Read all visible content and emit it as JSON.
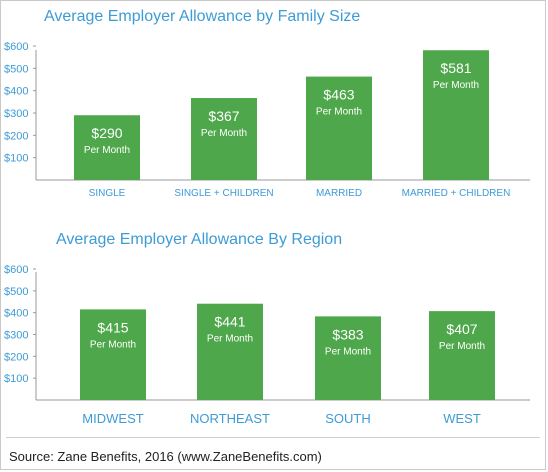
{
  "chart_data": [
    {
      "type": "bar",
      "title": "Average Employer Allowance by Family Size",
      "categories": [
        "SINGLE",
        "SINGLE + CHILDREN",
        "MARRIED",
        "MARRIED + CHILDREN"
      ],
      "values": [
        290,
        367,
        463,
        581
      ],
      "value_labels": [
        "$290",
        "$367",
        "$463",
        "$581"
      ],
      "sublabel": "Per Month",
      "yticks": [
        "$100",
        "$200",
        "$300",
        "$400",
        "$500",
        "$600"
      ],
      "ylim": [
        0,
        600
      ],
      "bar_color": "#4ea74a",
      "grid": false
    },
    {
      "type": "bar",
      "title": "Average Employer Allowance By Region",
      "categories": [
        "MIDWEST",
        "NORTHEAST",
        "SOUTH",
        "WEST"
      ],
      "values": [
        415,
        441,
        383,
        407
      ],
      "value_labels": [
        "$415",
        "$441",
        "$383",
        "$407"
      ],
      "sublabel": "Per Month",
      "yticks": [
        "$100",
        "$200",
        "$300",
        "$400",
        "$500",
        "$600"
      ],
      "ylim": [
        0,
        600
      ],
      "bar_color": "#4ea74a",
      "grid": false
    }
  ],
  "source": "Source: Zane Benefits, 2016 (www.ZaneBenefits.com)",
  "colors": {
    "title": "#3d9bd6",
    "axis_text": "#3d9bd6",
    "bar": "#4ea74a"
  }
}
